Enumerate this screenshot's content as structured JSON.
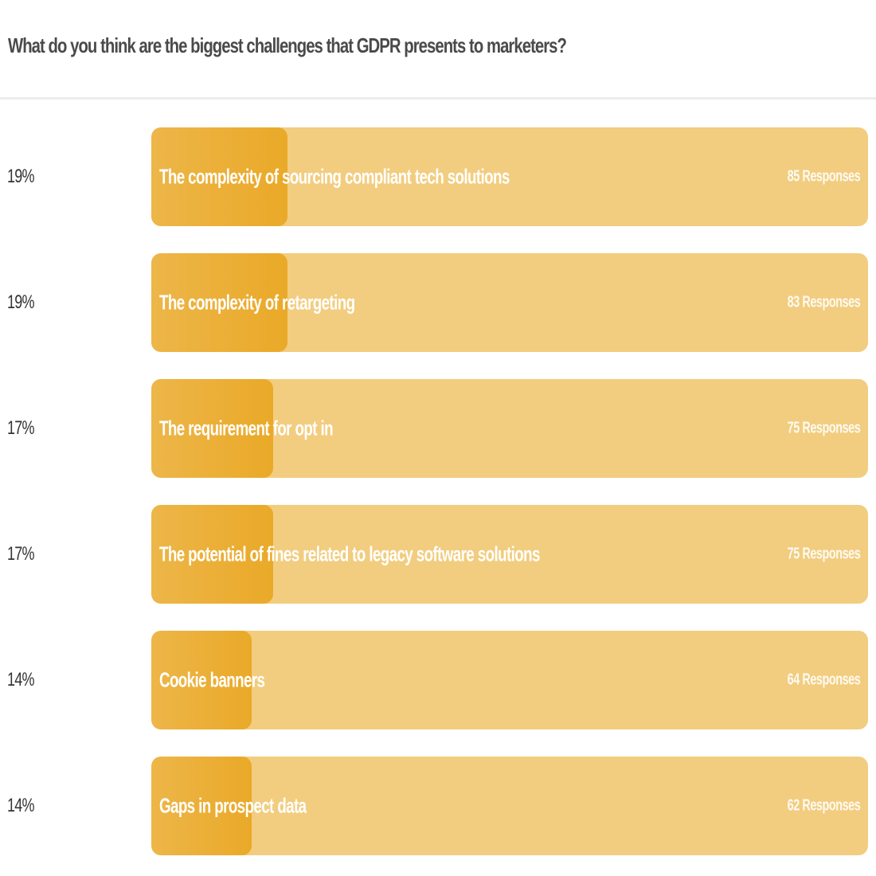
{
  "header": {
    "title": "What do you think are the biggest challenges that GDPR presents to marketers?"
  },
  "colors": {
    "track": "#F2CD7F",
    "fill_start": "#EDB649",
    "fill_end": "#EAA928",
    "label_text": "#ffffff",
    "percent_text": "#333333"
  },
  "chart_data": {
    "type": "bar",
    "orientation": "horizontal",
    "title": "What do you think are the biggest challenges that GDPR presents to marketers?",
    "xlabel": "",
    "ylabel": "",
    "xlim": [
      0,
      100
    ],
    "grid": false,
    "legend": "none",
    "categories": [
      "The complexity of sourcing compliant tech solutions",
      "The complexity of retargeting",
      "The requirement for opt in",
      "The potential of fines related to legacy software solutions",
      "Cookie banners",
      "Gaps in prospect data"
    ],
    "values": [
      19,
      19,
      17,
      17,
      14,
      14
    ],
    "responses": [
      85,
      83,
      75,
      75,
      64,
      62
    ],
    "unit": "%"
  },
  "rows": [
    {
      "percent": "19%",
      "label": "The complexity of sourcing compliant tech solutions",
      "responses": "85 Responses",
      "value": 19
    },
    {
      "percent": "19%",
      "label": "The complexity of retargeting",
      "responses": "83 Responses",
      "value": 19
    },
    {
      "percent": "17%",
      "label": "The requirement for opt in",
      "responses": "75 Responses",
      "value": 17
    },
    {
      "percent": "17%",
      "label": "The potential of fines related to legacy software solutions",
      "responses": "75 Responses",
      "value": 17
    },
    {
      "percent": "14%",
      "label": "Cookie banners",
      "responses": "64 Responses",
      "value": 14
    },
    {
      "percent": "14%",
      "label": "Gaps in prospect data",
      "responses": "62 Responses",
      "value": 14
    }
  ]
}
